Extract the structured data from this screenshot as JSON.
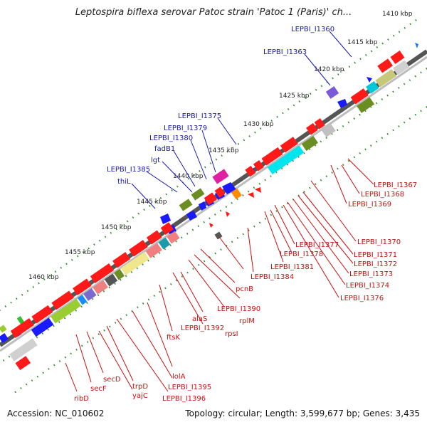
{
  "title": "Leptospira biflexa serovar Patoc strain 'Patoc 1 (Paris)' ch...",
  "footer": {
    "accession": "Accession: NC_010602",
    "summary": "Topology: circular; Length: 3,599,677 bp; Genes: 3,435"
  },
  "kbp_ticks": [
    "1410 kbp",
    "1415 kbp",
    "1420 kbp",
    "1425 kbp",
    "1430 kbp",
    "1435 kbp",
    "1440 kbp",
    "1445 kbp",
    "1450 kbp",
    "1455 kbp",
    "1460 kbp"
  ],
  "upper_labels": [
    "LEPBI_I1360",
    "LEPBI_I1363",
    "LEPBI_I1375",
    "LEPBI_I1379",
    "LEPBI_I1380",
    "fadB1",
    "lgt",
    "LEPBI_I1385",
    "thiL"
  ],
  "lower_labels": [
    "LEPBI_I1367",
    "LEPBI_I1368",
    "LEPBI_I1369",
    "LEPBI_I1370",
    "LEPBI_I1371",
    "LEPBI_I1372",
    "LEPBI_I1373",
    "LEPBI_I1374",
    "LEPBI_I1376",
    "LEPBI_I1377",
    "LEPBI_I1378",
    "LEPBI_I1381",
    "LEPBI_I1384",
    "pcnB",
    "LEPBI_I1390",
    "rplM",
    "rpsI",
    "alaS",
    "LEPBI_I1392",
    "ftsK",
    "lolA",
    "LEPBI_I1395",
    "LEPBI_I1396",
    "trpD",
    "yajC",
    "secD",
    "secF",
    "ribD"
  ],
  "colors": {
    "backbone": "#8a8a8a",
    "forward_strand": "#1a1aff",
    "reverse_strand": "#ff1a1a",
    "label_forward": "#1a1ab0",
    "label_reverse": "#c81010",
    "tick_dots": "#2e8b2e"
  }
}
